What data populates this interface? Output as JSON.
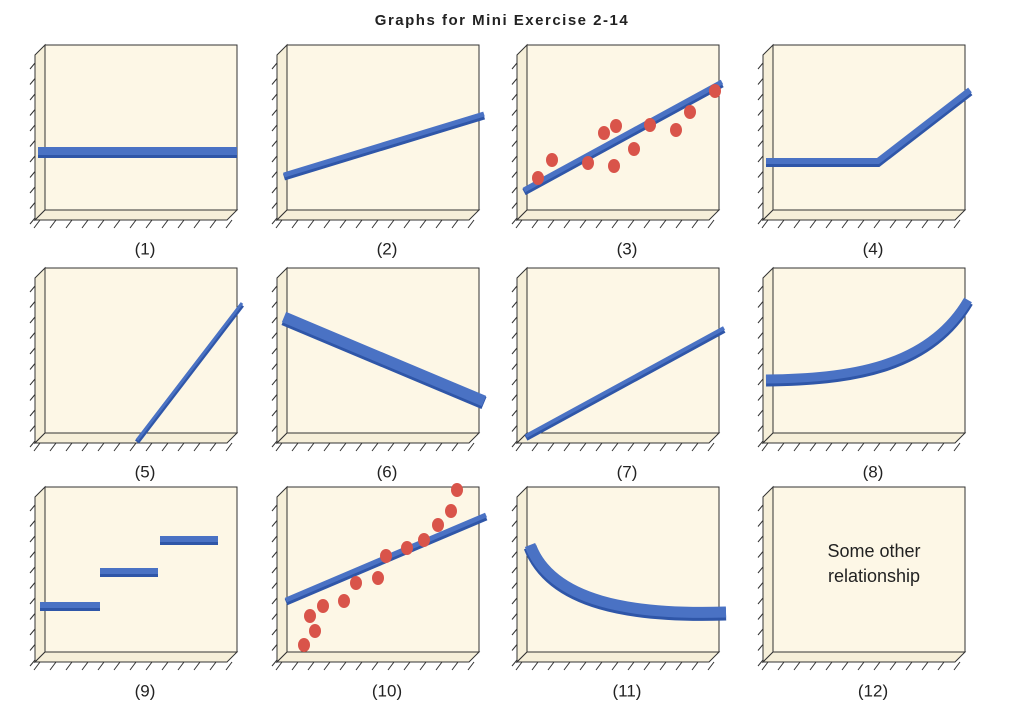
{
  "title": "Graphs for Mini Exercise 2-14",
  "panels": [
    {
      "label": "(1)"
    },
    {
      "label": "(2)"
    },
    {
      "label": "(3)"
    },
    {
      "label": "(4)"
    },
    {
      "label": "(5)"
    },
    {
      "label": "(6)"
    },
    {
      "label": "(7)"
    },
    {
      "label": "(8)"
    },
    {
      "label": "(9)"
    },
    {
      "label": "(10)"
    },
    {
      "label": "(11)"
    },
    {
      "label": "(12)",
      "text_lines": [
        "Some other",
        "relationship"
      ]
    }
  ]
}
